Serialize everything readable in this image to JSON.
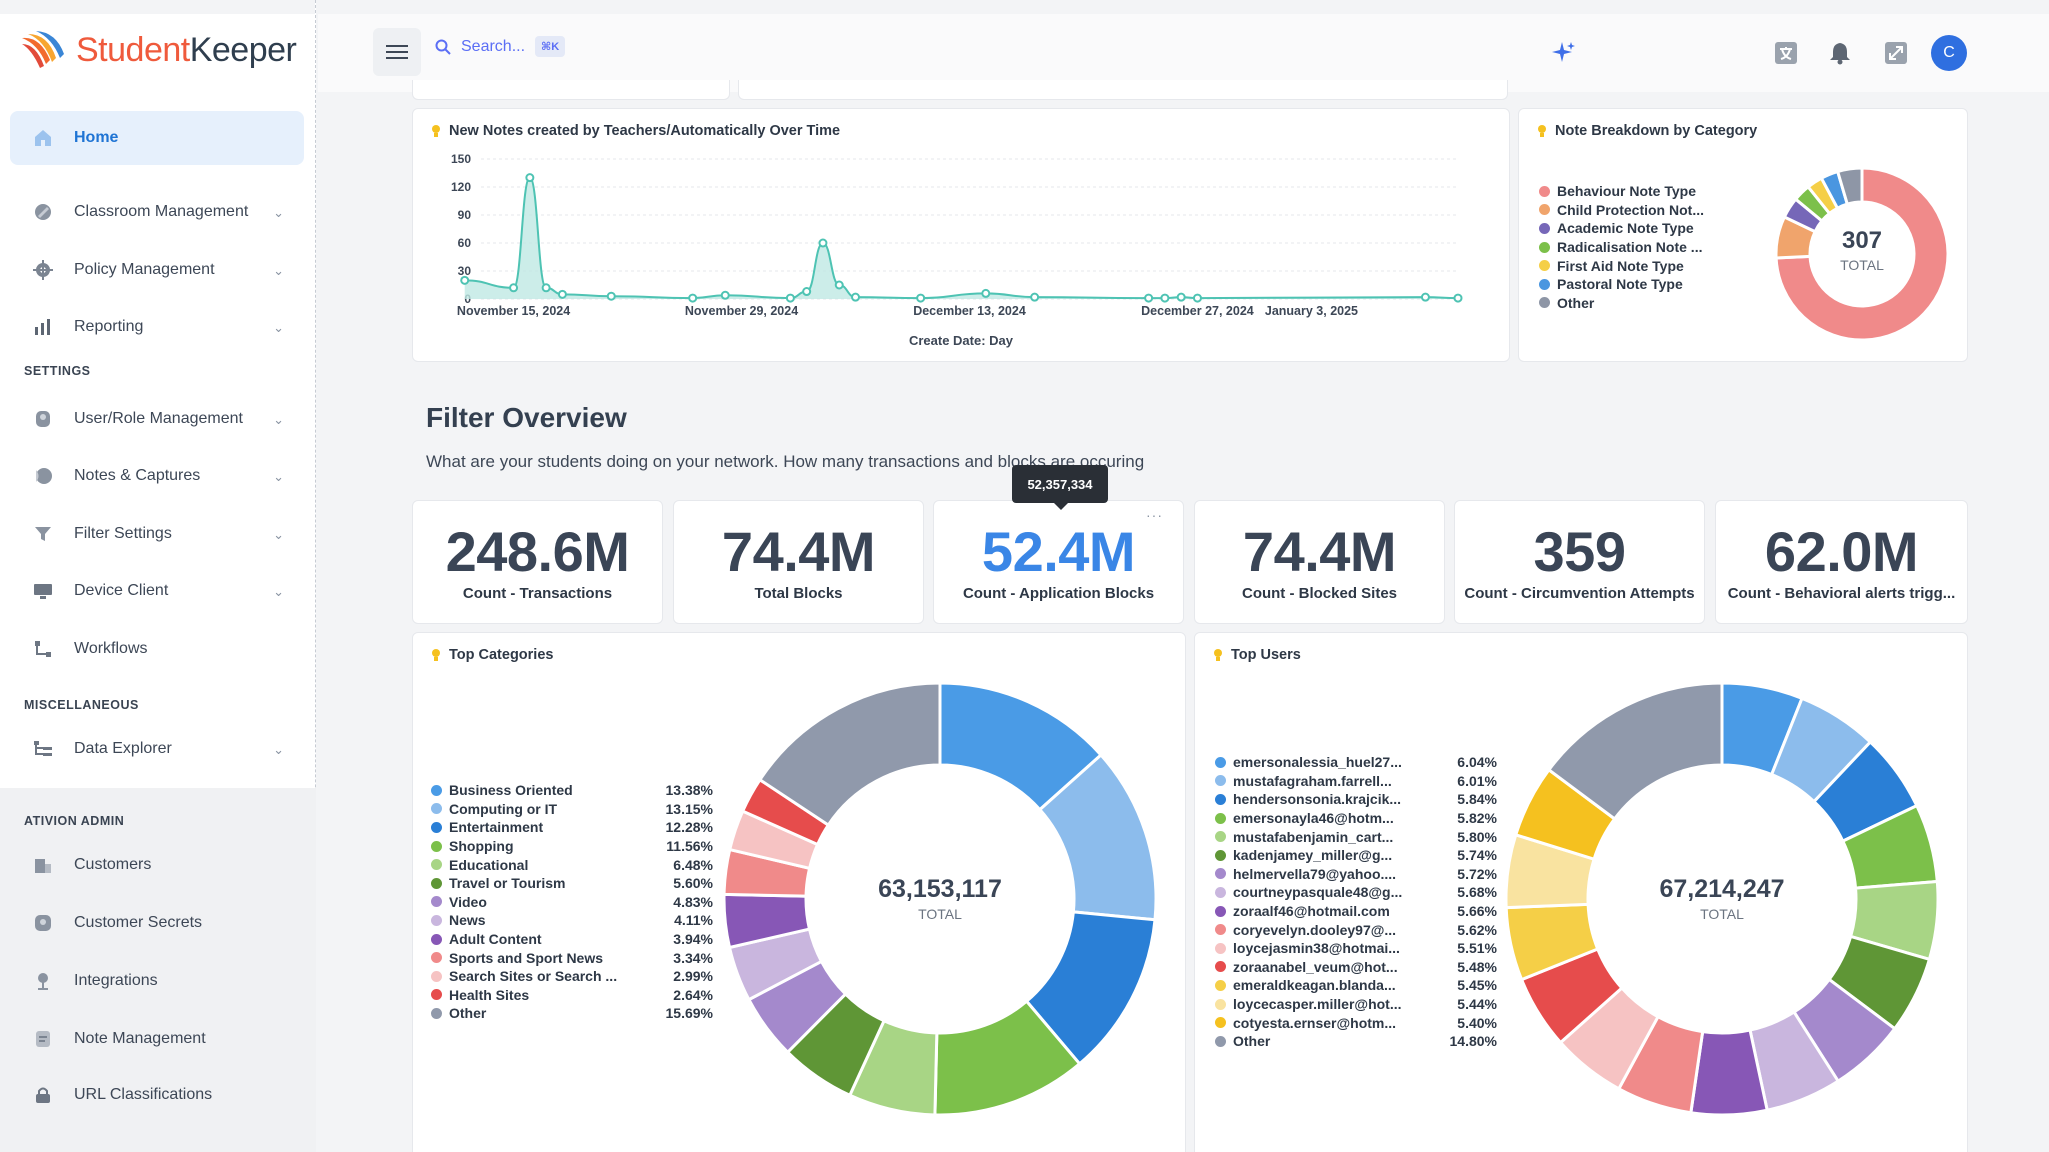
{
  "app": {
    "logo_part1": "Student",
    "logo_part2": "Keeper"
  },
  "sidebar": {
    "items": [
      {
        "label": "Home",
        "icon": "home-icon"
      },
      {
        "label": "Classroom Management",
        "icon": "classroom-icon"
      },
      {
        "label": "Policy Management",
        "icon": "policy-icon"
      },
      {
        "label": "Reporting",
        "icon": "bar-chart-icon"
      },
      {
        "label": "User/Role Management",
        "icon": "user-role-icon"
      },
      {
        "label": "Notes & Captures",
        "icon": "notes-icon"
      },
      {
        "label": "Filter Settings",
        "icon": "filter-icon"
      },
      {
        "label": "Device Client",
        "icon": "monitor-icon"
      },
      {
        "label": "Workflows",
        "icon": "workflow-icon"
      },
      {
        "label": "Data Explorer",
        "icon": "data-explorer-icon"
      },
      {
        "label": "Customers",
        "icon": "building-icon"
      },
      {
        "label": "Customer Secrets",
        "icon": "key-icon"
      },
      {
        "label": "Integrations",
        "icon": "plug-icon"
      },
      {
        "label": "Note Management",
        "icon": "note-icon"
      },
      {
        "label": "URL Classifications",
        "icon": "lock-icon"
      }
    ],
    "sections": {
      "settings": "SETTINGS",
      "misc": "MISCELLANEOUS",
      "admin": "ATIVION ADMIN"
    }
  },
  "topbar": {
    "search_placeholder": "Search...",
    "search_shortcut": "⌘K",
    "avatar_initial": "C"
  },
  "notes_chart": {
    "title": "New Notes created by Teachers/Automatically Over Time",
    "xlabel": "Create Date: Day",
    "y_ticks": [
      "150",
      "120",
      "90",
      "60",
      "30",
      "0"
    ],
    "x_ticks": [
      "November 15, 2024",
      "November 29, 2024",
      "December 13, 2024",
      "December 27, 2024",
      "January 3, 2025"
    ]
  },
  "breakdown": {
    "title": "Note Breakdown by Category",
    "total": "307",
    "total_label": "TOTAL",
    "legend": [
      {
        "name": "Behaviour Note Type",
        "color": "#f08a8a"
      },
      {
        "name": "Child Protection Not...",
        "color": "#f0a46c"
      },
      {
        "name": "Academic Note Type",
        "color": "#7667b8"
      },
      {
        "name": "Radicalisation Note ...",
        "color": "#7cc04a"
      },
      {
        "name": "First Aid Note Type",
        "color": "#f5cf47"
      },
      {
        "name": "Pastoral Note Type",
        "color": "#4a96e0"
      },
      {
        "name": "Other",
        "color": "#8e96a6"
      }
    ]
  },
  "filter": {
    "heading": "Filter Overview",
    "subtitle": "What are your students doing on your network. How many transactions and blocks are occuring",
    "tooltip": "52,357,334",
    "stats": [
      {
        "value": "248.6M",
        "label": "Count - Transactions"
      },
      {
        "value": "74.4M",
        "label": "Total Blocks"
      },
      {
        "value": "52.4M",
        "label": "Count - Application Blocks"
      },
      {
        "value": "74.4M",
        "label": "Count - Blocked Sites"
      },
      {
        "value": "359",
        "label": "Count - Circumvention Attempts"
      },
      {
        "value": "62.0M",
        "label": "Count - Behavioral alerts trigg..."
      }
    ]
  },
  "top_categories": {
    "title": "Top Categories",
    "total": "63,153,117",
    "total_label": "TOTAL",
    "legend": [
      {
        "name": "Business Oriented",
        "pct": "13.38%",
        "color": "#4a9be6"
      },
      {
        "name": "Computing or IT",
        "pct": "13.15%",
        "color": "#8cbcec"
      },
      {
        "name": "Entertainment",
        "pct": "12.28%",
        "color": "#2a7fd6"
      },
      {
        "name": "Shopping",
        "pct": "11.56%",
        "color": "#7cc04a"
      },
      {
        "name": "Educational",
        "pct": "6.48%",
        "color": "#a8d585"
      },
      {
        "name": "Travel or Tourism",
        "pct": "5.60%",
        "color": "#5f9636"
      },
      {
        "name": "Video",
        "pct": "4.83%",
        "color": "#a489cc"
      },
      {
        "name": "News",
        "pct": "4.11%",
        "color": "#c9b6de"
      },
      {
        "name": "Adult Content",
        "pct": "3.94%",
        "color": "#8757b6"
      },
      {
        "name": "Sports and Sport News",
        "pct": "3.34%",
        "color": "#f08a8a"
      },
      {
        "name": "Search Sites or Search ...",
        "pct": "2.99%",
        "color": "#f6c3c3"
      },
      {
        "name": "Health Sites",
        "pct": "2.64%",
        "color": "#e64c4c"
      },
      {
        "name": "Other",
        "pct": "15.69%",
        "color": "#9099ab"
      }
    ]
  },
  "top_users": {
    "title": "Top Users",
    "total": "67,214,247",
    "total_label": "TOTAL",
    "legend": [
      {
        "name": "emersonalessia_huel27...",
        "pct": "6.04%",
        "color": "#4a9be6"
      },
      {
        "name": "mustafagraham.farrell...",
        "pct": "6.01%",
        "color": "#8cbcec"
      },
      {
        "name": "hendersonsonia.krajcik...",
        "pct": "5.84%",
        "color": "#2a7fd6"
      },
      {
        "name": "emersonayla46@hotm...",
        "pct": "5.82%",
        "color": "#7cc04a"
      },
      {
        "name": "mustafabenjamin_cart...",
        "pct": "5.80%",
        "color": "#a8d585"
      },
      {
        "name": "kadenjamey_miller@g...",
        "pct": "5.74%",
        "color": "#5f9636"
      },
      {
        "name": "helmervella79@yahoo....",
        "pct": "5.72%",
        "color": "#a489cc"
      },
      {
        "name": "courtneypasquale48@g...",
        "pct": "5.68%",
        "color": "#c9b6de"
      },
      {
        "name": "zoraalf46@hotmail.com",
        "pct": "5.66%",
        "color": "#8757b6"
      },
      {
        "name": "coryevelyn.dooley97@...",
        "pct": "5.62%",
        "color": "#f08a8a"
      },
      {
        "name": "loycejasmin38@hotmai...",
        "pct": "5.51%",
        "color": "#f6c3c3"
      },
      {
        "name": "zoraanabel_veum@hot...",
        "pct": "5.48%",
        "color": "#e64c4c"
      },
      {
        "name": "emeraldkeagan.blanda...",
        "pct": "5.45%",
        "color": "#f5cf47"
      },
      {
        "name": "loycecasper.miller@hot...",
        "pct": "5.44%",
        "color": "#f9e3a0"
      },
      {
        "name": "cotyesta.ernser@hotm...",
        "pct": "5.40%",
        "color": "#f5c11f"
      },
      {
        "name": "Other",
        "pct": "14.80%",
        "color": "#9099ab"
      }
    ]
  },
  "chart_data": [
    {
      "type": "area",
      "title": "New Notes created by Teachers/Automatically Over Time",
      "xlabel": "Create Date: Day",
      "ylabel": "",
      "ylim": [
        0,
        150
      ],
      "x": [
        "2024-11-12",
        "2024-11-15",
        "2024-11-16",
        "2024-11-17",
        "2024-11-18",
        "2024-11-21",
        "2024-11-26",
        "2024-11-28",
        "2024-12-02",
        "2024-12-03",
        "2024-12-04",
        "2024-12-05",
        "2024-12-06",
        "2024-12-10",
        "2024-12-14",
        "2024-12-17",
        "2024-12-24",
        "2024-12-25",
        "2024-12-26",
        "2024-12-27",
        "2025-01-10",
        "2025-01-12"
      ],
      "values": [
        20,
        12,
        130,
        12,
        5,
        3,
        1,
        4,
        1,
        8,
        60,
        15,
        2,
        1,
        6,
        2,
        1,
        1,
        2,
        1,
        2,
        1
      ]
    },
    {
      "type": "pie",
      "title": "Note Breakdown by Category",
      "categories": [
        "Behaviour Note Type",
        "Child Protection Not...",
        "Academic Note Type",
        "Radicalisation Note ...",
        "First Aid Note Type",
        "Pastoral Note Type",
        "Other"
      ],
      "values": [
        228,
        24,
        12,
        10,
        9,
        10,
        14
      ]
    },
    {
      "type": "pie",
      "title": "Top Categories",
      "categories": [
        "Business Oriented",
        "Computing or IT",
        "Entertainment",
        "Shopping",
        "Educational",
        "Travel or Tourism",
        "Video",
        "News",
        "Adult Content",
        "Sports and Sport News",
        "Search Sites or Search ...",
        "Health Sites",
        "Other"
      ],
      "values": [
        13.38,
        13.15,
        12.28,
        11.56,
        6.48,
        5.6,
        4.83,
        4.11,
        3.94,
        3.34,
        2.99,
        2.64,
        15.69
      ]
    },
    {
      "type": "pie",
      "title": "Top Users",
      "categories": [
        "emersonalessia_huel27...",
        "mustafagraham.farrell...",
        "hendersonsonia.krajcik...",
        "emersonayla46@hotm...",
        "mustafabenjamin_cart...",
        "kadenjamey_miller@g...",
        "helmervella79@yahoo....",
        "courtneypasquale48@g...",
        "zoraalf46@hotmail.com",
        "coryevelyn.dooley97@...",
        "loycejasmin38@hotmai...",
        "zoraanabel_veum@hot...",
        "emeraldkeagan.blanda...",
        "loycecasper.miller@hot...",
        "cotyesta.ernser@hotm...",
        "Other"
      ],
      "values": [
        6.04,
        6.01,
        5.84,
        5.82,
        5.8,
        5.74,
        5.72,
        5.68,
        5.66,
        5.62,
        5.51,
        5.48,
        5.45,
        5.44,
        5.4,
        14.8
      ]
    }
  ]
}
